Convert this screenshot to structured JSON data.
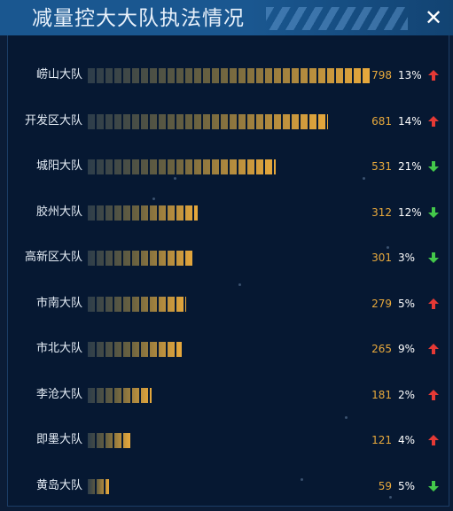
{
  "header": {
    "title": "减量控大大队执法情况",
    "close_label": "✕"
  },
  "colors": {
    "bar_end": "#e8a93c",
    "up": "#e53935",
    "down": "#43c84a"
  },
  "icons": {
    "close": "close-icon",
    "up": "arrow-up-icon",
    "down": "arrow-down-icon"
  },
  "chart_data": {
    "type": "bar",
    "orientation": "horizontal",
    "title": "减量控大大队执法情况",
    "categories": [
      "崂山大队",
      "开发区大队",
      "城阳大队",
      "胶州大队",
      "高新区大队",
      "市南大队",
      "市北大队",
      "李沧大队",
      "即墨大队",
      "黄岛大队"
    ],
    "values": [
      798,
      681,
      531,
      312,
      301,
      279,
      265,
      181,
      121,
      59
    ],
    "percents": [
      "13%",
      "14%",
      "21%",
      "12%",
      "3%",
      "5%",
      "9%",
      "2%",
      "4%",
      "5%"
    ],
    "trends": [
      "up",
      "up",
      "down",
      "down",
      "down",
      "up",
      "up",
      "up",
      "up",
      "down"
    ],
    "xlim": [
      0,
      798
    ]
  }
}
